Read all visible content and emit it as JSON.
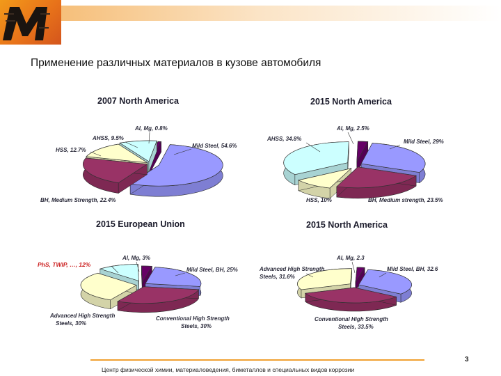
{
  "slide": {
    "title": "Применение различных материалов в кузове автомобиля",
    "footer": "Центр физической химии, материаловедения, биметаллов и специальных видов коррозии",
    "page_number": "3"
  },
  "colors": {
    "mild": "#9999ff",
    "bh": "#993366",
    "hss": "#ffffcc",
    "ahss": "#ccffff",
    "almg": "#660066",
    "logo": "#e8731a",
    "footer_line": "#f0a030"
  },
  "chart_data": [
    {
      "type": "pie",
      "title": "2007 North America",
      "slices": [
        {
          "label": "Mild Steel, 54.6%",
          "value": 54.6,
          "color": "mild"
        },
        {
          "label": "BH, Medium Strength, 22.4%",
          "value": 22.4,
          "color": "bh"
        },
        {
          "label": "HSS, 12.7%",
          "value": 12.7,
          "color": "hss"
        },
        {
          "label": "AHSS, 9.5%",
          "value": 9.5,
          "color": "ahss"
        },
        {
          "label": "Al, Mg, 0.8%",
          "value": 0.8,
          "color": "almg"
        }
      ]
    },
    {
      "type": "pie",
      "title": "2015 North America",
      "slices": [
        {
          "label": "Mild Steel, 29%",
          "value": 29,
          "color": "mild"
        },
        {
          "label": "BH, Medium strength, 23.5%",
          "value": 23.5,
          "color": "bh"
        },
        {
          "label": "HSS, 10%",
          "value": 10,
          "color": "hss"
        },
        {
          "label": "AHSS, 34.8%",
          "value": 34.8,
          "color": "ahss"
        },
        {
          "label": "Al, Mg, 2.5%",
          "value": 2.5,
          "color": "almg"
        }
      ]
    },
    {
      "type": "pie",
      "title": "2015 European Union",
      "slices": [
        {
          "label": "Mild Steel, BH, 25%",
          "value": 25,
          "color": "mild"
        },
        {
          "label": "Conventional High Strength Steels, 30%",
          "value": 30,
          "color": "bh"
        },
        {
          "label": "Advanced High Strength Steels, 30%",
          "value": 30,
          "color": "hss"
        },
        {
          "label": "PhS, TWIP, …, 12%",
          "value": 12,
          "color": "ahss"
        },
        {
          "label": "Al, Mg, 3%",
          "value": 3,
          "color": "almg"
        }
      ]
    },
    {
      "type": "pie",
      "title": "2015 North America",
      "slices": [
        {
          "label": "Mild Steel, BH, 32.6",
          "value": 32.6,
          "color": "mild"
        },
        {
          "label": "Conventional High Strength Steels, 33.5%",
          "value": 33.5,
          "color": "bh"
        },
        {
          "label": "Advanced High Strength Steels, 31.6%",
          "value": 31.6,
          "color": "hss"
        },
        {
          "label": "Al, Mg, 2.3",
          "value": 2.3,
          "color": "almg"
        }
      ]
    }
  ]
}
